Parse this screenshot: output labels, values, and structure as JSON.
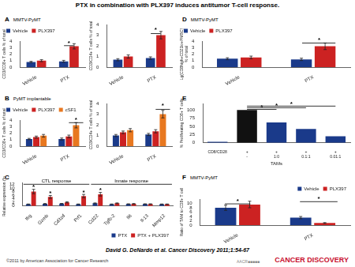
{
  "title": "PTX in combination with PLX397 induces antitumor T-cell response.",
  "annotations": [
    {
      "text": "David G. DeNardo et al. Cancer Discovery 2011;1:54-67"
    },
    {
      "text": "©2011 by American Association for Cancer Research"
    },
    {
      "text": "AACR■■■■■"
    },
    {
      "text": "CANCER DISCOVERY",
      "color": "#c8102e"
    }
  ],
  "chart_data": [
    {
      "type": "bar",
      "title": "A",
      "subtitle": "MMTV-PyMT",
      "categories": [
        "Vehicle",
        "PTX"
      ],
      "series": [
        {
          "name": "Vehicle",
          "color": "#1a3a8a",
          "values": [
            0.8,
            0.9
          ],
          "errors": [
            0.1,
            0.15
          ]
        },
        {
          "name": "PLX397",
          "color": "#cc2222",
          "values": [
            1.0,
            3.2
          ],
          "errors": [
            0.15,
            0.4
          ]
        }
      ],
      "ylabel": "CD3/CD8+ T cells % of total",
      "ylim": [
        0,
        4.0
      ],
      "yticks": [
        0,
        1.0,
        2.0,
        3.0,
        4.0
      ],
      "grid": false,
      "legend": "upper left",
      "annotations": [
        {
          "text": "*",
          "x": 1.0,
          "y": 3.45,
          "bracket": {
            "x": [
              0.85,
              1.15
            ],
            "y": 3.3
          }
        }
      ]
    },
    {
      "type": "bar",
      "categories": [
        "Vehicle",
        "PTX"
      ],
      "series": [
        {
          "name": "Vehicle",
          "color": "#1a3a8a",
          "values": [
            0.7,
            0.85
          ],
          "errors": [
            0.1,
            0.12
          ]
        },
        {
          "name": "PLX397",
          "color": "#cc2222",
          "values": [
            1.0,
            3.0
          ],
          "errors": [
            0.15,
            0.35
          ]
        }
      ],
      "ylabel": "CD3/CD4+ T cells % of total",
      "ylim": [
        0,
        4.0
      ],
      "yticks": [
        0,
        1.0,
        2.0,
        3.0,
        4.0
      ],
      "grid": false,
      "annotations": [
        {
          "text": "*",
          "x": 1.0,
          "y": 3.3,
          "bracket": {
            "x": [
              0.85,
              1.15
            ],
            "y": 3.15
          }
        }
      ]
    },
    {
      "type": "bar",
      "title": "D",
      "subtitle": "MMTV-PyMT",
      "categories": [
        "Vehicle",
        "PTX"
      ],
      "series": [
        {
          "name": "Vehicle",
          "color": "#1a3a8a",
          "values": [
            1.3,
            1.2
          ],
          "errors": [
            0.15,
            0.18
          ]
        },
        {
          "name": "PLX397",
          "color": "#cc2222",
          "values": [
            1.5,
            3.2
          ],
          "errors": [
            0.2,
            0.5
          ]
        }
      ],
      "ylabel": "Lg(CD8high+CD21lo+PMBC)\n% of total",
      "ylim": [
        0,
        4.0
      ],
      "yticks": [
        0,
        1.0,
        2.0,
        3.0,
        4.0
      ],
      "grid": false,
      "legend": "upper left",
      "annotations": [
        {
          "text": "*",
          "x": 1.08,
          "y": 3.85,
          "bracket": {
            "x": [
              0.85,
              1.3
            ],
            "y": 3.7
          }
        }
      ]
    },
    {
      "type": "bar",
      "title": "B",
      "subtitle": "PyMT implantable",
      "categories": [
        "Vehicle",
        "PTX"
      ],
      "series": [
        {
          "name": "Vehicle",
          "color": "#1a3a8a",
          "values": [
            1.1,
            1.1
          ],
          "errors": [
            0.1,
            0.15
          ]
        },
        {
          "name": "PLX397",
          "color": "#cc2222",
          "values": [
            1.4,
            1.5
          ],
          "errors": [
            0.15,
            0.2
          ]
        },
        {
          "name": "cSF1",
          "color": "#e87820",
          "values": [
            1.6,
            3.2
          ],
          "errors": [
            0.2,
            0.4
          ]
        }
      ],
      "ylabel": "CD3/CD8+ T cells % of total",
      "ylim": [
        0,
        4.0
      ],
      "yticks": [
        0,
        1.0,
        2.0,
        3.0,
        4.0
      ],
      "grid": false,
      "legend": "upper left",
      "annotations": [
        {
          "text": "*",
          "x": 1.22,
          "y": 3.75,
          "bracket": {
            "x": [
              1.0,
              1.44
            ],
            "y": 3.6
          }
        }
      ]
    },
    {
      "type": "bar",
      "categories": [
        "Vehicle",
        "PTX"
      ],
      "series": [
        {
          "name": "Vehicle",
          "color": "#1a3a8a",
          "values": [
            1.0,
            1.1
          ],
          "errors": [
            0.1,
            0.1
          ]
        },
        {
          "name": "PLX397",
          "color": "#cc2222",
          "values": [
            1.3,
            1.4
          ],
          "errors": [
            0.12,
            0.15
          ]
        },
        {
          "name": "cSF1",
          "color": "#e87820",
          "values": [
            1.5,
            3.0
          ],
          "errors": [
            0.15,
            0.35
          ]
        }
      ],
      "ylabel": "CD3/CD4+ T cells % of total",
      "ylim": [
        0,
        4.0
      ],
      "yticks": [
        0,
        1.0,
        2.0,
        3.0,
        4.0
      ],
      "grid": false,
      "annotations": [
        {
          "text": "*",
          "x": 1.22,
          "y": 3.6,
          "bracket": {
            "x": [
              1.0,
              1.44
            ],
            "y": 3.45
          }
        }
      ]
    },
    {
      "type": "bar",
      "title": "E",
      "categories": [
        "CD8/CD28",
        "+\n-",
        "+\n1:0",
        "+\n0.1:1",
        "+\n0.01:1"
      ],
      "values": [
        3,
        100,
        62,
        42,
        20
      ],
      "colors": [
        "#1a3a8a",
        "#111111",
        "#1a3a8a",
        "#1a3a8a",
        "#1a3a8a"
      ],
      "ylabel": "% Proliferating CD8+ T cells",
      "xlabel": "TAMs",
      "ylim": [
        0,
        120
      ],
      "yticks": [
        0,
        25,
        50,
        75,
        100
      ],
      "grid": false,
      "annotations": [
        {
          "text": "*",
          "x": 2.5,
          "y": 112,
          "bracket": {
            "x": [
              1,
              4
            ],
            "y": 112
          }
        },
        {
          "text": "*",
          "x": 2.0,
          "y": 107,
          "bracket": {
            "x": [
              1,
              3
            ],
            "y": 107
          }
        },
        {
          "text": "*",
          "x": 1.5,
          "y": 102,
          "bracket": {
            "x": [
              1,
              2
            ],
            "y": 102
          }
        }
      ]
    },
    {
      "type": "bar",
      "title": "C",
      "categories": [
        "Ifrg",
        "Gzmb",
        "Cd3zd",
        "Prf1",
        "Ccl22",
        "Tgfb-2",
        "Il6",
        "Il-13",
        "Mmp12"
      ],
      "series": [
        {
          "name": "PTX",
          "color": "#1a3a8a",
          "values": [
            1.0,
            1.2,
            1.3,
            1.0,
            1.5,
            1.0,
            1.1,
            1.1,
            1.0
          ],
          "errors": [
            0.1,
            0.15,
            0.1,
            0.1,
            0.2,
            0.1,
            0.1,
            0.1,
            0.1
          ]
        },
        {
          "name": "PTX + PLX397",
          "color": "#cc2222",
          "values": [
            8.0,
            5.0,
            2.0,
            5.5,
            6.5,
            1.5,
            1.2,
            1.1,
            1.0
          ],
          "errors": [
            1.2,
            0.8,
            0.3,
            0.9,
            1.0,
            0.2,
            0.15,
            0.1,
            0.1
          ]
        }
      ],
      "ylabel": "Relative expression (fold)",
      "ylim": [
        0,
        13
      ],
      "yticks": [
        0,
        2,
        4,
        6,
        8,
        10,
        12
      ],
      "grid": false,
      "legend": "lower right",
      "annotations": [
        {
          "text": "CTL response",
          "x": 1.525,
          "y": 12.2,
          "bracket": {
            "x": [
              -0.45,
              3.5
            ],
            "y": 12.0
          }
        },
        {
          "text": "Innate response",
          "x": 6.025,
          "y": 12.2,
          "bracket": {
            "x": [
              3.6,
              8.45
            ],
            "y": 12.0
          }
        },
        {
          "text": "*",
          "x": "Ifrg",
          "series": "PTX + PLX397",
          "y": 9.4
        },
        {
          "text": "*",
          "x": "Gzmb",
          "series": "PTX + PLX397",
          "y": 6.0
        },
        {
          "text": "*",
          "x": "Prf1",
          "series": "PTX + PLX397",
          "y": 6.6
        },
        {
          "text": "*",
          "x": "Ccl22",
          "series": "PTX + PLX397",
          "y": 7.7
        }
      ]
    },
    {
      "type": "bar",
      "title": "F",
      "subtitle": "MMTV-PyMT",
      "categories": [
        "Vehicle",
        "PTX"
      ],
      "series": [
        {
          "name": "Vehicle",
          "color": "#1a3a8a",
          "values": [
            8.0,
            3.5
          ],
          "errors": [
            1.2,
            0.5
          ]
        },
        {
          "name": "PLX397",
          "color": "#cc2222",
          "values": [
            9.5,
            1.0
          ],
          "errors": [
            1.5,
            0.2
          ]
        }
      ],
      "ylabel": "Ratio of TAM to CD8+ T cell",
      "ylim": [
        0,
        12
      ],
      "yticks": [
        0,
        2,
        4,
        6,
        8,
        10
      ],
      "grid": false,
      "legend": "upper right",
      "annotations": [
        {
          "text": "*",
          "x": 0.0,
          "y": 10.2,
          "bracket": {
            "x": [
              -0.17,
              0.17
            ],
            "y": 9.8
          }
        },
        {
          "text": "*",
          "x": 1.08,
          "y": 11.2,
          "bracket": {
            "x": [
              0.83,
              1.33
            ],
            "y": 10.8
          }
        }
      ]
    }
  ]
}
